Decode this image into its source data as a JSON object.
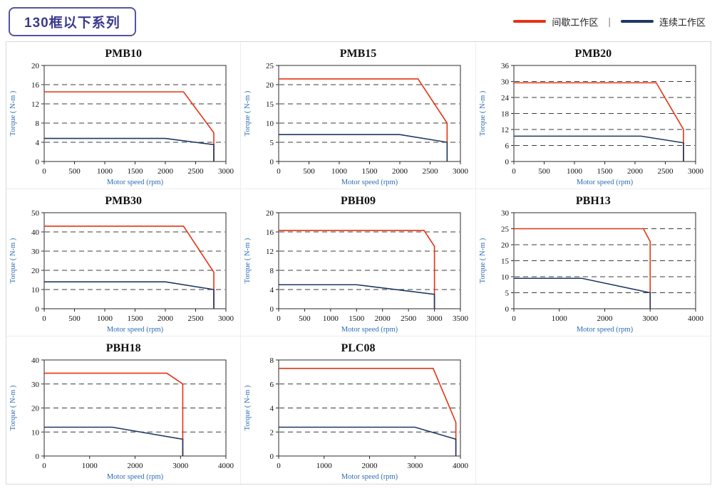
{
  "header": {
    "title": "130框以下系列",
    "separator": "|",
    "legend": [
      {
        "label": "间歇工作区",
        "color": "#e63312"
      },
      {
        "label": "连续工作区",
        "color": "#1f3864"
      }
    ]
  },
  "chart_data": [
    {
      "type": "line",
      "title": "PMB10",
      "xlabel": "Motor speed (rpm)",
      "ylabel": "Torque ( N-m )",
      "xlim": [
        0,
        3000
      ],
      "xticks": [
        0,
        500,
        1000,
        1500,
        2000,
        2500,
        3000
      ],
      "ylim": [
        0,
        20
      ],
      "yticks": [
        0,
        4,
        8,
        12,
        16,
        20
      ],
      "grid": "horizontal-dashed",
      "series": [
        {
          "name": "间歇工作区",
          "color": "#e63312",
          "points": [
            [
              0,
              14.5
            ],
            [
              2300,
              14.5
            ],
            [
              2800,
              6
            ],
            [
              2800,
              0
            ]
          ]
        },
        {
          "name": "连续工作区",
          "color": "#1f3864",
          "points": [
            [
              0,
              4.8
            ],
            [
              2000,
              4.8
            ],
            [
              2800,
              3.5
            ],
            [
              2800,
              0
            ]
          ]
        }
      ]
    },
    {
      "type": "line",
      "title": "PMB15",
      "xlabel": "Motor speed (rpm)",
      "ylabel": "Torque ( N-m )",
      "xlim": [
        0,
        3000
      ],
      "xticks": [
        0,
        500,
        1000,
        1500,
        2000,
        2500,
        3000
      ],
      "ylim": [
        0,
        25
      ],
      "yticks": [
        0,
        5,
        10,
        15,
        20,
        25
      ],
      "grid": "horizontal-dashed",
      "series": [
        {
          "name": "间歇工作区",
          "color": "#e63312",
          "points": [
            [
              0,
              21.5
            ],
            [
              2300,
              21.5
            ],
            [
              2780,
              10
            ],
            [
              2780,
              0
            ]
          ]
        },
        {
          "name": "连续工作区",
          "color": "#1f3864",
          "points": [
            [
              0,
              7
            ],
            [
              2000,
              7
            ],
            [
              2780,
              5
            ],
            [
              2780,
              0
            ]
          ]
        }
      ]
    },
    {
      "type": "line",
      "title": "PMB20",
      "xlabel": "Motor speed (rpm)",
      "ylabel": "Torque ( N-m )",
      "xlim": [
        0,
        3000
      ],
      "xticks": [
        0,
        500,
        1000,
        1500,
        2000,
        2500,
        3000
      ],
      "ylim": [
        0,
        36
      ],
      "yticks": [
        0,
        6,
        12,
        18,
        24,
        30,
        36
      ],
      "grid": "horizontal-dashed",
      "series": [
        {
          "name": "间歇工作区",
          "color": "#e63312",
          "points": [
            [
              0,
              29.5
            ],
            [
              2350,
              29.5
            ],
            [
              2800,
              12
            ],
            [
              2800,
              0
            ]
          ]
        },
        {
          "name": "连续工作区",
          "color": "#1f3864",
          "points": [
            [
              0,
              9.5
            ],
            [
              2100,
              9.5
            ],
            [
              2800,
              7
            ],
            [
              2800,
              0
            ]
          ]
        }
      ]
    },
    {
      "type": "line",
      "title": "PMB30",
      "xlabel": "Motor speed (rpm)",
      "ylabel": "Torque ( N-m )",
      "xlim": [
        0,
        3000
      ],
      "xticks": [
        0,
        500,
        1000,
        1500,
        2000,
        2500,
        3000
      ],
      "ylim": [
        0,
        50
      ],
      "yticks": [
        0,
        10,
        20,
        30,
        40,
        50
      ],
      "grid": "horizontal-dashed",
      "series": [
        {
          "name": "间歇工作区",
          "color": "#e63312",
          "points": [
            [
              0,
              43
            ],
            [
              2300,
              43
            ],
            [
              2800,
              19
            ],
            [
              2800,
              0
            ]
          ]
        },
        {
          "name": "连续工作区",
          "color": "#1f3864",
          "points": [
            [
              0,
              14
            ],
            [
              2000,
              14
            ],
            [
              2800,
              10
            ],
            [
              2800,
              0
            ]
          ]
        }
      ]
    },
    {
      "type": "line",
      "title": "PBH09",
      "xlabel": "Motor speed (rpm)",
      "ylabel": "Torque ( N-m )",
      "xlim": [
        0,
        3500
      ],
      "xticks": [
        0,
        500,
        1000,
        1500,
        2000,
        2500,
        3000,
        3500
      ],
      "ylim": [
        0,
        20
      ],
      "yticks": [
        0,
        4,
        8,
        12,
        16,
        20
      ],
      "grid": "horizontal-dashed",
      "series": [
        {
          "name": "间歇工作区",
          "color": "#e63312",
          "points": [
            [
              0,
              16.3
            ],
            [
              2800,
              16.3
            ],
            [
              3000,
              13
            ],
            [
              3000,
              0
            ]
          ]
        },
        {
          "name": "连续工作区",
          "color": "#1f3864",
          "points": [
            [
              0,
              5
            ],
            [
              1500,
              5
            ],
            [
              3000,
              3
            ],
            [
              3000,
              0
            ]
          ]
        }
      ]
    },
    {
      "type": "line",
      "title": "PBH13",
      "xlabel": "Motor speed (rpm)",
      "ylabel": "Torque ( N-m )",
      "xlim": [
        0,
        4000
      ],
      "xticks": [
        0,
        1000,
        2000,
        3000,
        4000
      ],
      "ylim": [
        0,
        30
      ],
      "yticks": [
        0,
        5,
        10,
        15,
        20,
        25,
        30
      ],
      "grid": "horizontal-dashed",
      "series": [
        {
          "name": "间歇工作区",
          "color": "#e63312",
          "points": [
            [
              0,
              25
            ],
            [
              2850,
              25
            ],
            [
              3000,
              21
            ],
            [
              3000,
              0
            ]
          ]
        },
        {
          "name": "连续工作区",
          "color": "#1f3864",
          "points": [
            [
              0,
              9.5
            ],
            [
              1500,
              9.5
            ],
            [
              3000,
              5
            ],
            [
              3000,
              0
            ]
          ]
        }
      ]
    },
    {
      "type": "line",
      "title": "PBH18",
      "xlabel": "Motor speed (rpm)",
      "ylabel": "Torque ( N-m )",
      "xlim": [
        0,
        4000
      ],
      "xticks": [
        0,
        1000,
        2000,
        3000,
        4000
      ],
      "ylim": [
        0,
        40
      ],
      "yticks": [
        0,
        10,
        20,
        30,
        40
      ],
      "grid": "horizontal-dashed",
      "series": [
        {
          "name": "间歇工作区",
          "color": "#e63312",
          "points": [
            [
              0,
              34.5
            ],
            [
              2700,
              34.5
            ],
            [
              3050,
              30
            ],
            [
              3050,
              0
            ]
          ]
        },
        {
          "name": "连续工作区",
          "color": "#1f3864",
          "points": [
            [
              0,
              12
            ],
            [
              1500,
              12
            ],
            [
              3050,
              7
            ],
            [
              3050,
              0
            ]
          ]
        }
      ]
    },
    {
      "type": "line",
      "title": "PLC08",
      "xlabel": "Motor speed (rpm)",
      "ylabel": "Torque ( N-m )",
      "xlim": [
        0,
        4000
      ],
      "xticks": [
        0,
        1000,
        2000,
        3000,
        4000
      ],
      "ylim": [
        0,
        8
      ],
      "yticks": [
        0,
        2,
        4,
        6,
        8
      ],
      "grid": "horizontal-dashed",
      "series": [
        {
          "name": "间歇工作区",
          "color": "#e63312",
          "points": [
            [
              0,
              7.3
            ],
            [
              3400,
              7.3
            ],
            [
              3900,
              2.8
            ],
            [
              3900,
              0
            ]
          ]
        },
        {
          "name": "连续工作区",
          "color": "#1f3864",
          "points": [
            [
              0,
              2.4
            ],
            [
              3000,
              2.4
            ],
            [
              3900,
              1.4
            ],
            [
              3900,
              0
            ]
          ]
        }
      ]
    }
  ]
}
